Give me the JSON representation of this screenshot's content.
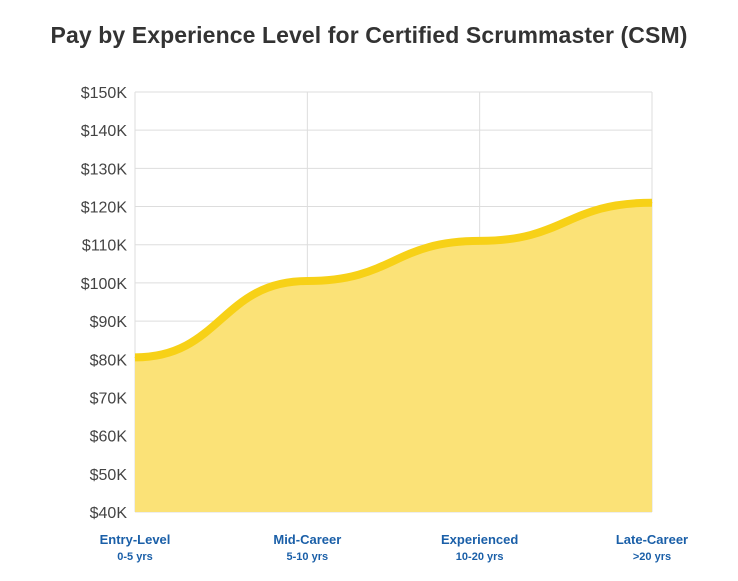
{
  "chart_data": {
    "type": "area",
    "title": "Pay by Experience Level for Certified Scrummaster (CSM)",
    "xlabel": "",
    "ylabel": "",
    "categories": [
      "Entry-Level",
      "Mid-Career",
      "Experienced",
      "Late-Career"
    ],
    "category_sublabels": [
      "0-5 yrs",
      "5-10 yrs",
      "10-20 yrs",
      ">20 yrs"
    ],
    "series": [
      {
        "values": [
          80500,
          100500,
          111000,
          121000
        ]
      }
    ],
    "ylim": [
      40000,
      150000
    ],
    "yticks": [
      40000,
      50000,
      60000,
      70000,
      80000,
      90000,
      100000,
      110000,
      120000,
      130000,
      140000,
      150000
    ],
    "ytick_labels": [
      "$40K",
      "$50K",
      "$60K",
      "$70K",
      "$80K",
      "$90K",
      "$100K",
      "$110K",
      "$120K",
      "$130K",
      "$140K",
      "$150K"
    ],
    "grid": true,
    "legend": "none",
    "colors": {
      "line": "#f7d117",
      "fill": "#fbe277",
      "grid": "#dddddd",
      "xlabel": "#1a5fa8"
    }
  }
}
